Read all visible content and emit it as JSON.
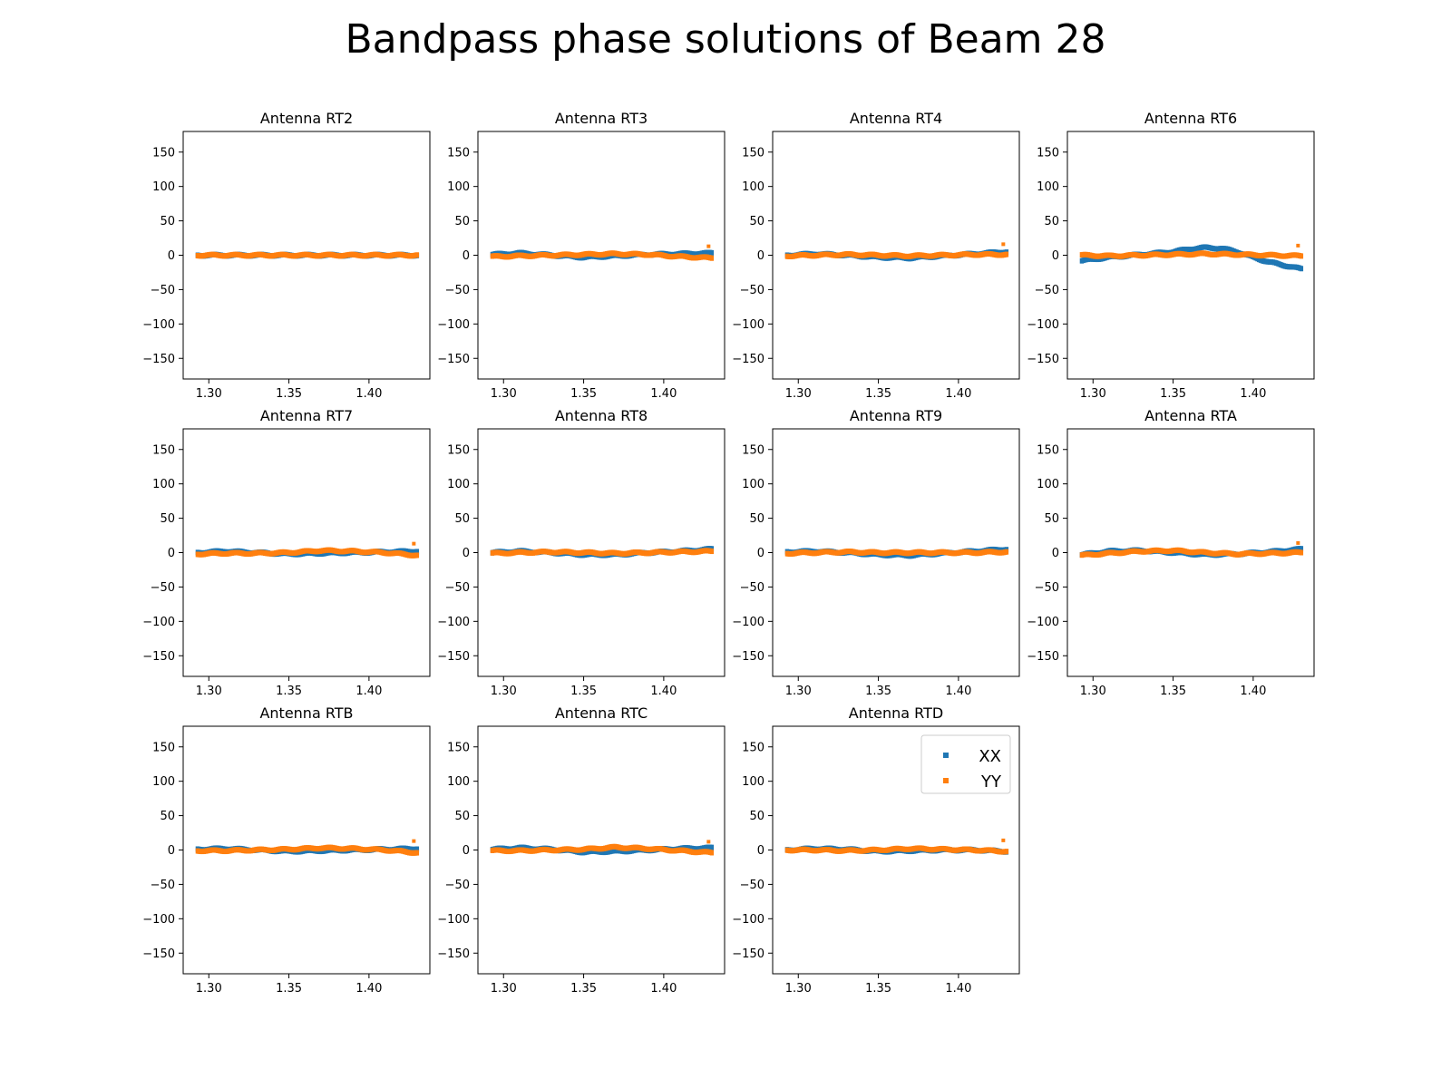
{
  "figure": {
    "title": "Bandpass phase solutions of Beam 28"
  },
  "chart_data": {
    "type": "scatter",
    "xlim": [
      1.284,
      1.438
    ],
    "ylim": [
      -180,
      180
    ],
    "x_ticks": [
      1.3,
      1.35,
      1.4
    ],
    "x_tick_labels": [
      "1.30",
      "1.35",
      "1.40"
    ],
    "y_ticks": [
      150,
      100,
      50,
      0,
      -50,
      -100,
      -150
    ],
    "y_tick_labels": [
      "150",
      "100",
      "50",
      "0",
      "−50",
      "−100",
      "−150"
    ],
    "x_range": [
      1.293,
      1.43
    ],
    "legend": {
      "panel": "Antenna RTD",
      "position": "top-right",
      "entries": [
        {
          "label": "XX",
          "color": "#1f77b4"
        },
        {
          "label": "YY",
          "color": "#ff7f0e"
        }
      ]
    },
    "series_colors": {
      "XX": "#1f77b4",
      "YY": "#ff7f0e"
    },
    "panels": [
      {
        "title": "Antenna RT2",
        "XX": {
          "x": [
            1.293,
            1.43
          ],
          "y": [
            0,
            0
          ]
        },
        "YY": {
          "x": [
            1.293,
            1.43
          ],
          "y": [
            0,
            0
          ]
        },
        "YY_outlier": null
      },
      {
        "title": "Antenna RT3",
        "XX": {
          "x": [
            1.293,
            1.31,
            1.33,
            1.35,
            1.37,
            1.39,
            1.41,
            1.43
          ],
          "y": [
            1,
            3,
            0,
            -3,
            -1,
            1,
            2,
            3
          ]
        },
        "YY": {
          "x": [
            1.293,
            1.31,
            1.33,
            1.35,
            1.37,
            1.39,
            1.41,
            1.43
          ],
          "y": [
            -2,
            -1,
            0,
            1,
            2,
            1,
            -2,
            -4
          ]
        },
        "YY_outlier": {
          "x": 1.428,
          "y": 13
        }
      },
      {
        "title": "Antenna RT4",
        "XX": {
          "x": [
            1.293,
            1.31,
            1.33,
            1.35,
            1.37,
            1.39,
            1.41,
            1.43
          ],
          "y": [
            0,
            2,
            0,
            -3,
            -4,
            -1,
            2,
            5
          ]
        },
        "YY": {
          "x": [
            1.293,
            1.31,
            1.33,
            1.35,
            1.37,
            1.39,
            1.41,
            1.43
          ],
          "y": [
            -1,
            0,
            1,
            0,
            -1,
            0,
            1,
            1
          ]
        },
        "YY_outlier": {
          "x": 1.428,
          "y": 16
        }
      },
      {
        "title": "Antenna RT6",
        "XX": {
          "x": [
            1.293,
            1.31,
            1.33,
            1.35,
            1.36,
            1.37,
            1.38,
            1.39,
            1.4,
            1.41,
            1.42,
            1.43
          ],
          "y": [
            -8,
            -3,
            1,
            5,
            9,
            11,
            10,
            5,
            -3,
            -10,
            -15,
            -20
          ]
        },
        "YY": {
          "x": [
            1.293,
            1.31,
            1.33,
            1.35,
            1.37,
            1.39,
            1.41,
            1.43
          ],
          "y": [
            0,
            -1,
            0,
            1,
            2,
            1,
            0,
            -1
          ]
        },
        "YY_outlier": {
          "x": 1.428,
          "y": 14
        }
      },
      {
        "title": "Antenna RT7",
        "XX": {
          "x": [
            1.293,
            1.31,
            1.33,
            1.35,
            1.37,
            1.39,
            1.41,
            1.43
          ],
          "y": [
            0,
            2,
            0,
            -2,
            -1,
            0,
            1,
            2
          ]
        },
        "YY": {
          "x": [
            1.293,
            1.31,
            1.33,
            1.35,
            1.37,
            1.39,
            1.41,
            1.43
          ],
          "y": [
            -2,
            -1,
            -1,
            0,
            3,
            2,
            0,
            -4
          ]
        },
        "YY_outlier": {
          "x": 1.428,
          "y": 13
        }
      },
      {
        "title": "Antenna RT8",
        "XX": {
          "x": [
            1.293,
            1.31,
            1.33,
            1.35,
            1.37,
            1.39,
            1.41,
            1.43
          ],
          "y": [
            0,
            2,
            0,
            -3,
            -3,
            0,
            2,
            5
          ]
        },
        "YY": {
          "x": [
            1.293,
            1.31,
            1.33,
            1.35,
            1.37,
            1.39,
            1.41,
            1.43
          ],
          "y": [
            -1,
            0,
            1,
            0,
            -1,
            0,
            1,
            2
          ]
        },
        "YY_outlier": null
      },
      {
        "title": "Antenna RT9",
        "XX": {
          "x": [
            1.293,
            1.31,
            1.33,
            1.35,
            1.37,
            1.39,
            1.41,
            1.43
          ],
          "y": [
            1,
            2,
            0,
            -3,
            -4,
            -1,
            2,
            5
          ]
        },
        "YY": {
          "x": [
            1.293,
            1.31,
            1.33,
            1.35,
            1.37,
            1.39,
            1.41,
            1.43
          ],
          "y": [
            -1,
            0,
            1,
            0,
            0,
            0,
            0,
            1
          ]
        },
        "YY_outlier": null
      },
      {
        "title": "Antenna RTA",
        "XX": {
          "x": [
            1.293,
            1.31,
            1.33,
            1.35,
            1.37,
            1.39,
            1.41,
            1.43
          ],
          "y": [
            -3,
            2,
            3,
            0,
            -3,
            -2,
            1,
            5
          ]
        },
        "YY": {
          "x": [
            1.293,
            1.31,
            1.33,
            1.35,
            1.37,
            1.39,
            1.41,
            1.43
          ],
          "y": [
            -4,
            -1,
            2,
            3,
            0,
            -2,
            -1,
            0
          ]
        },
        "YY_outlier": {
          "x": 1.428,
          "y": 14
        }
      },
      {
        "title": "Antenna RTB",
        "XX": {
          "x": [
            1.293,
            1.31,
            1.33,
            1.35,
            1.37,
            1.39,
            1.41,
            1.43
          ],
          "y": [
            1,
            2,
            0,
            -2,
            -1,
            0,
            1,
            2
          ]
        },
        "YY": {
          "x": [
            1.293,
            1.31,
            1.33,
            1.35,
            1.37,
            1.39,
            1.41,
            1.43
          ],
          "y": [
            -1,
            -1,
            0,
            1,
            3,
            2,
            0,
            -4
          ]
        },
        "YY_outlier": {
          "x": 1.428,
          "y": 13
        }
      },
      {
        "title": "Antenna RTC",
        "XX": {
          "x": [
            1.293,
            1.31,
            1.33,
            1.35,
            1.37,
            1.39,
            1.41,
            1.43
          ],
          "y": [
            1,
            3,
            1,
            -3,
            -2,
            0,
            2,
            3
          ]
        },
        "YY": {
          "x": [
            1.293,
            1.31,
            1.33,
            1.35,
            1.37,
            1.39,
            1.41,
            1.43
          ],
          "y": [
            -1,
            -1,
            0,
            1,
            4,
            2,
            -1,
            -4
          ]
        },
        "YY_outlier": {
          "x": 1.428,
          "y": 12
        }
      },
      {
        "title": "Antenna RTD",
        "XX": {
          "x": [
            1.293,
            1.31,
            1.33,
            1.35,
            1.37,
            1.39,
            1.41,
            1.43
          ],
          "y": [
            0,
            2,
            1,
            -2,
            -1,
            0,
            0,
            -2
          ]
        },
        "YY": {
          "x": [
            1.293,
            1.31,
            1.33,
            1.35,
            1.37,
            1.39,
            1.41,
            1.43
          ],
          "y": [
            0,
            0,
            -1,
            0,
            2,
            1,
            0,
            -2
          ]
        },
        "YY_outlier": {
          "x": 1.428,
          "y": 14
        }
      }
    ]
  }
}
